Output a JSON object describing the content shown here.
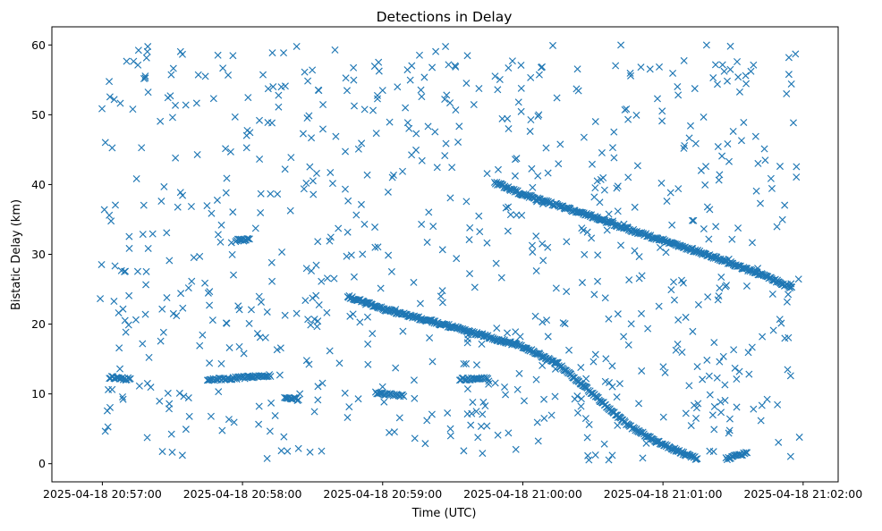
{
  "chart_data": {
    "type": "scatter",
    "title": "Detections in Delay",
    "xlabel": "Time (UTC)",
    "ylabel": "Bistatic Delay (km)",
    "x_unit": "minutes after 2025-04-18 20:57:00 UTC",
    "xlim": [
      -0.36,
      5.25
    ],
    "ylim": [
      -2.6,
      62.6
    ],
    "x_tick_values": [
      0,
      1,
      2,
      3,
      4,
      5
    ],
    "x_tick_labels": [
      "2025-04-18 20:57:00",
      "2025-04-18 20:58:00",
      "2025-04-18 20:59:00",
      "2025-04-18 21:00:00",
      "2025-04-18 21:01:00",
      "2025-04-18 21:02:00"
    ],
    "y_ticks": [
      0,
      10,
      20,
      30,
      40,
      50,
      60
    ],
    "marker": "x",
    "color": "#1f77b4",
    "grid": false,
    "legend": "none",
    "noise_detection_count": 750,
    "noise_time_range": [
      -0.02,
      4.98
    ],
    "noise_delay_range": [
      0.5,
      60
    ],
    "series": [
      {
        "name": "track-diagonal-lower",
        "description": "long descending target track",
        "x": [
          1.75,
          2.0,
          2.25,
          2.5,
          2.75,
          3.0,
          3.25,
          3.5,
          3.75,
          4.0,
          4.25
        ],
        "y": [
          24.0,
          22.2,
          20.9,
          19.6,
          18.2,
          16.8,
          14.3,
          10.0,
          5.5,
          2.7,
          0.6
        ]
      },
      {
        "name": "track-diagonal-upper",
        "description": "upper descending target track",
        "x": [
          2.8,
          3.0,
          3.25,
          3.5,
          3.75,
          4.0,
          4.25,
          4.5,
          4.75,
          4.92
        ],
        "y": [
          40.3,
          38.6,
          37.0,
          35.4,
          33.6,
          32.0,
          30.4,
          28.6,
          26.7,
          25.2
        ]
      },
      {
        "name": "track-short-segments",
        "description": "short near-constant-delay segments",
        "segments": [
          {
            "x": [
              0.05,
              0.2
            ],
            "y": [
              12.4,
              12.1
            ]
          },
          {
            "x": [
              0.75,
              1.2
            ],
            "y": [
              12.0,
              12.6
            ]
          },
          {
            "x": [
              1.95,
              2.15
            ],
            "y": [
              10.1,
              9.7
            ]
          },
          {
            "x": [
              2.55,
              2.75
            ],
            "y": [
              12.1,
              12.3
            ]
          },
          {
            "x": [
              1.3,
              1.4
            ],
            "y": [
              9.5,
              9.2
            ]
          },
          {
            "x": [
              0.95,
              1.05
            ],
            "y": [
              32.0,
              32.1
            ]
          },
          {
            "x": [
              4.45,
              4.6
            ],
            "y": [
              0.7,
              1.6
            ]
          }
        ]
      }
    ]
  }
}
